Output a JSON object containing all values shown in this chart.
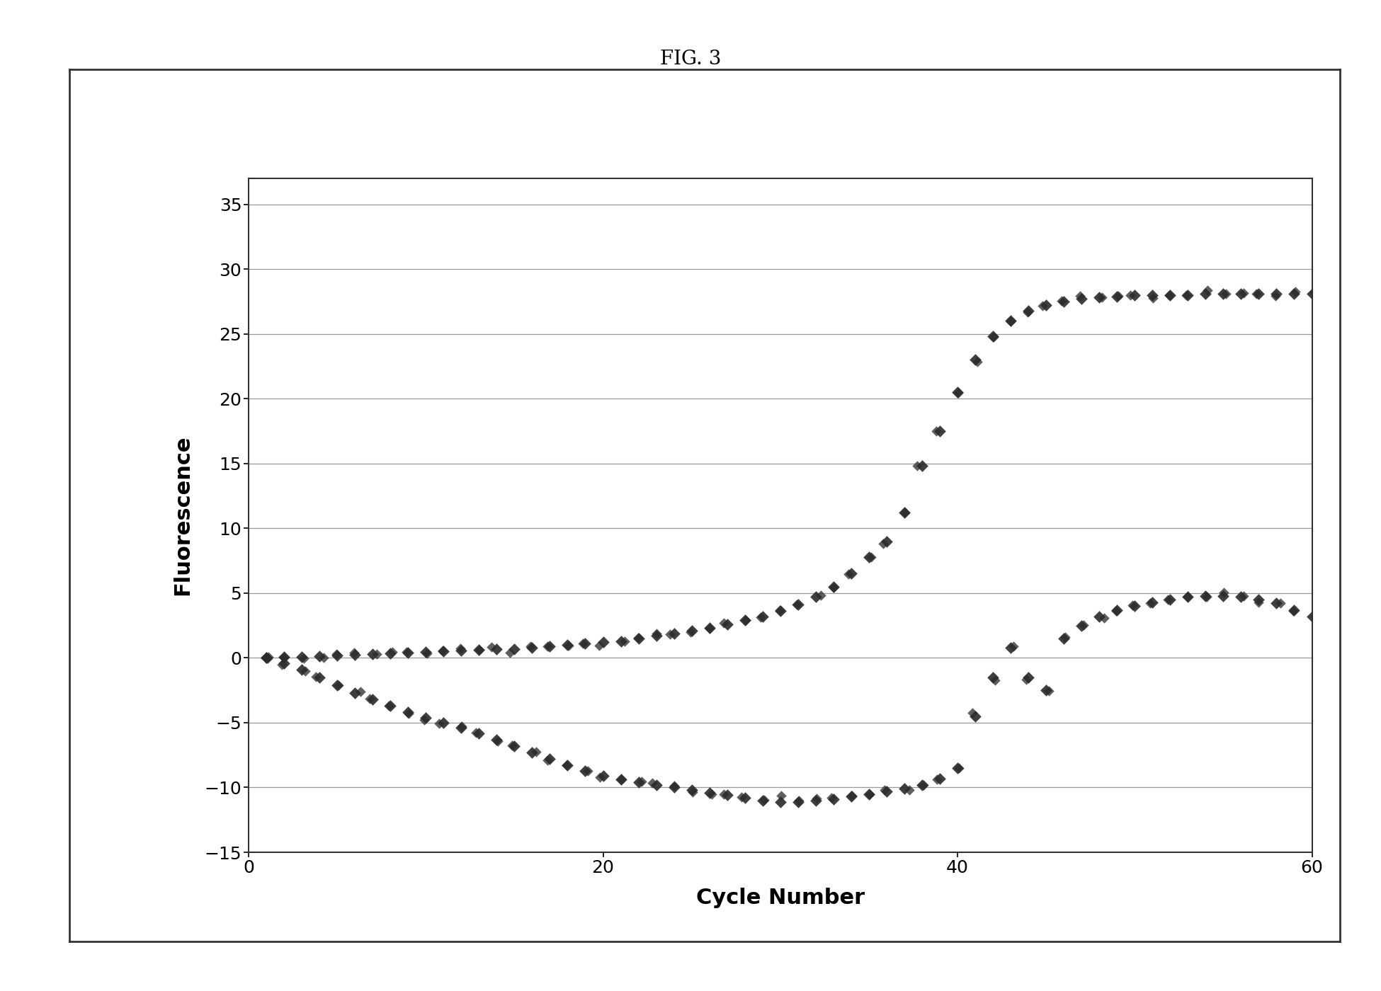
{
  "title": "FIG. 3",
  "xlabel": "Cycle Number",
  "ylabel": "Fluorescence",
  "xlim": [
    0,
    60
  ],
  "ylim": [
    -15,
    37
  ],
  "yticks": [
    -15,
    -10,
    -5,
    0,
    5,
    10,
    15,
    20,
    25,
    30,
    35
  ],
  "xticks": [
    0,
    20,
    40,
    60
  ],
  "series1_x": [
    1,
    2,
    3,
    4,
    5,
    6,
    7,
    8,
    9,
    10,
    11,
    12,
    13,
    14,
    15,
    16,
    17,
    18,
    19,
    20,
    21,
    22,
    23,
    24,
    25,
    26,
    27,
    28,
    29,
    30,
    31,
    32,
    33,
    34,
    35,
    36,
    37,
    38,
    39,
    40,
    41,
    42,
    43,
    44,
    45,
    46,
    47,
    48,
    49,
    50,
    51,
    52,
    53,
    54,
    55,
    56,
    57,
    58,
    59,
    60
  ],
  "series1_y": [
    0.0,
    0.05,
    0.1,
    0.15,
    0.2,
    0.25,
    0.3,
    0.35,
    0.4,
    0.45,
    0.5,
    0.55,
    0.6,
    0.65,
    0.7,
    0.8,
    0.9,
    1.0,
    1.1,
    1.2,
    1.3,
    1.5,
    1.7,
    1.9,
    2.1,
    2.3,
    2.6,
    2.9,
    3.2,
    3.6,
    4.1,
    4.7,
    5.5,
    6.5,
    7.8,
    9.0,
    11.2,
    14.8,
    17.5,
    20.5,
    23.0,
    24.8,
    26.0,
    26.8,
    27.2,
    27.5,
    27.7,
    27.8,
    27.9,
    28.0,
    28.0,
    28.0,
    28.0,
    28.1,
    28.1,
    28.1,
    28.1,
    28.1,
    28.1,
    28.1
  ],
  "series2_x": [
    1,
    2,
    3,
    4,
    5,
    6,
    7,
    8,
    9,
    10,
    11,
    12,
    13,
    14,
    15,
    16,
    17,
    18,
    19,
    20,
    21,
    22,
    23,
    24,
    25,
    26,
    27,
    28,
    29,
    30,
    31,
    32,
    33,
    34,
    35,
    36,
    37,
    38,
    39,
    40,
    41,
    42,
    43,
    44,
    45,
    46,
    47,
    48,
    49,
    50,
    51,
    52,
    53,
    54,
    55,
    56,
    57,
    58,
    59,
    60
  ],
  "series2_y": [
    0.0,
    -0.4,
    -0.9,
    -1.5,
    -2.1,
    -2.7,
    -3.2,
    -3.7,
    -4.2,
    -4.6,
    -5.0,
    -5.4,
    -5.8,
    -6.3,
    -6.8,
    -7.3,
    -7.8,
    -8.3,
    -8.7,
    -9.1,
    -9.4,
    -9.6,
    -9.8,
    -10.0,
    -10.2,
    -10.4,
    -10.6,
    -10.8,
    -11.0,
    -11.1,
    -11.1,
    -11.0,
    -10.9,
    -10.7,
    -10.5,
    -10.3,
    -10.1,
    -9.8,
    -9.3,
    -8.5,
    -4.5,
    -1.5,
    0.8,
    -1.5,
    -2.5,
    1.5,
    2.5,
    3.2,
    3.7,
    4.0,
    4.3,
    4.5,
    4.7,
    4.8,
    4.8,
    4.7,
    4.5,
    4.2,
    3.7,
    3.2
  ],
  "dot_color": "#2a2a2a",
  "background_color": "#ffffff",
  "plot_background": "#ffffff",
  "grid_color": "#999999",
  "marker_size": 6,
  "title_fontsize": 20,
  "label_fontsize": 22,
  "tick_fontsize": 18,
  "outer_rect_color": "#444444"
}
